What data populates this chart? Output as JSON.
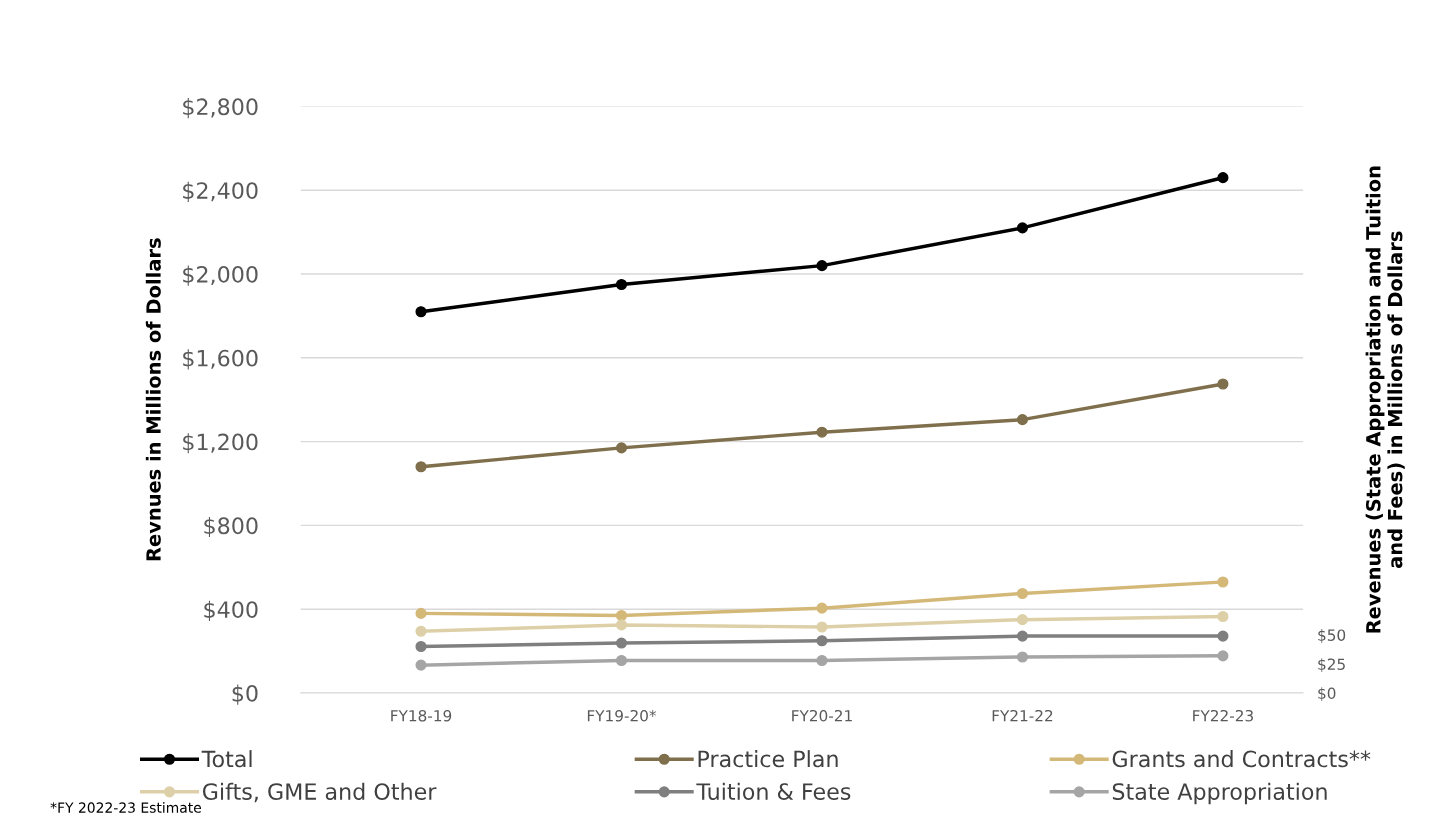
{
  "chart_data": {
    "type": "line",
    "categories": [
      "FY18-19",
      "FY19-20*",
      "FY20-21",
      "FY21-22",
      "FY22-23"
    ],
    "ylabel": "Revnues in Millions of Dollars",
    "y2label": "Revenues (State Appropriation and Tuition\nand Fees) in Millions of Dollars",
    "ylim": [
      0,
      2800
    ],
    "yticks": [
      {
        "value": 0,
        "label": "$0"
      },
      {
        "value": 400,
        "label": "$400"
      },
      {
        "value": 800,
        "label": "$800"
      },
      {
        "value": 1200,
        "label": "$1,200"
      },
      {
        "value": 1600,
        "label": "$1,600"
      },
      {
        "value": 2000,
        "label": "$2,000"
      },
      {
        "value": 2400,
        "label": "$2,400"
      },
      {
        "value": 2800,
        "label": "$2,800"
      }
    ],
    "y2lim": [
      0,
      505
    ],
    "y2ticks": [
      {
        "value": 0,
        "label": "$0"
      },
      {
        "value": 25,
        "label": "$25"
      },
      {
        "value": 50,
        "label": "$50"
      }
    ],
    "series": [
      {
        "name": "Total",
        "color": "#000000",
        "values": [
          1820,
          1950,
          2040,
          2220,
          2460
        ]
      },
      {
        "name": "Practice Plan",
        "color": "#7f6f4c",
        "values": [
          1080,
          1170,
          1245,
          1305,
          1475
        ]
      },
      {
        "name": "Grants and Contracts**",
        "color": "#d4b878",
        "values": [
          380,
          370,
          405,
          475,
          530
        ]
      },
      {
        "name": "Gifts, GME and Other",
        "color": "#ddd0a8",
        "values": [
          295,
          325,
          315,
          350,
          365
        ]
      },
      {
        "name": "Tuition & Fees",
        "color": "#7f7f7f",
        "values": [
          40,
          43,
          45,
          49,
          49
        ],
        "axis": "y2"
      },
      {
        "name": "State Appropriation",
        "color": "#a5a5a5",
        "values": [
          24,
          28,
          28,
          31,
          32
        ],
        "axis": "y2"
      }
    ],
    "annotations": [
      "*FY 2022-23 Estimate"
    ],
    "grid": "y",
    "legend": "bottom",
    "marker": "circle",
    "line_style": "solid"
  }
}
